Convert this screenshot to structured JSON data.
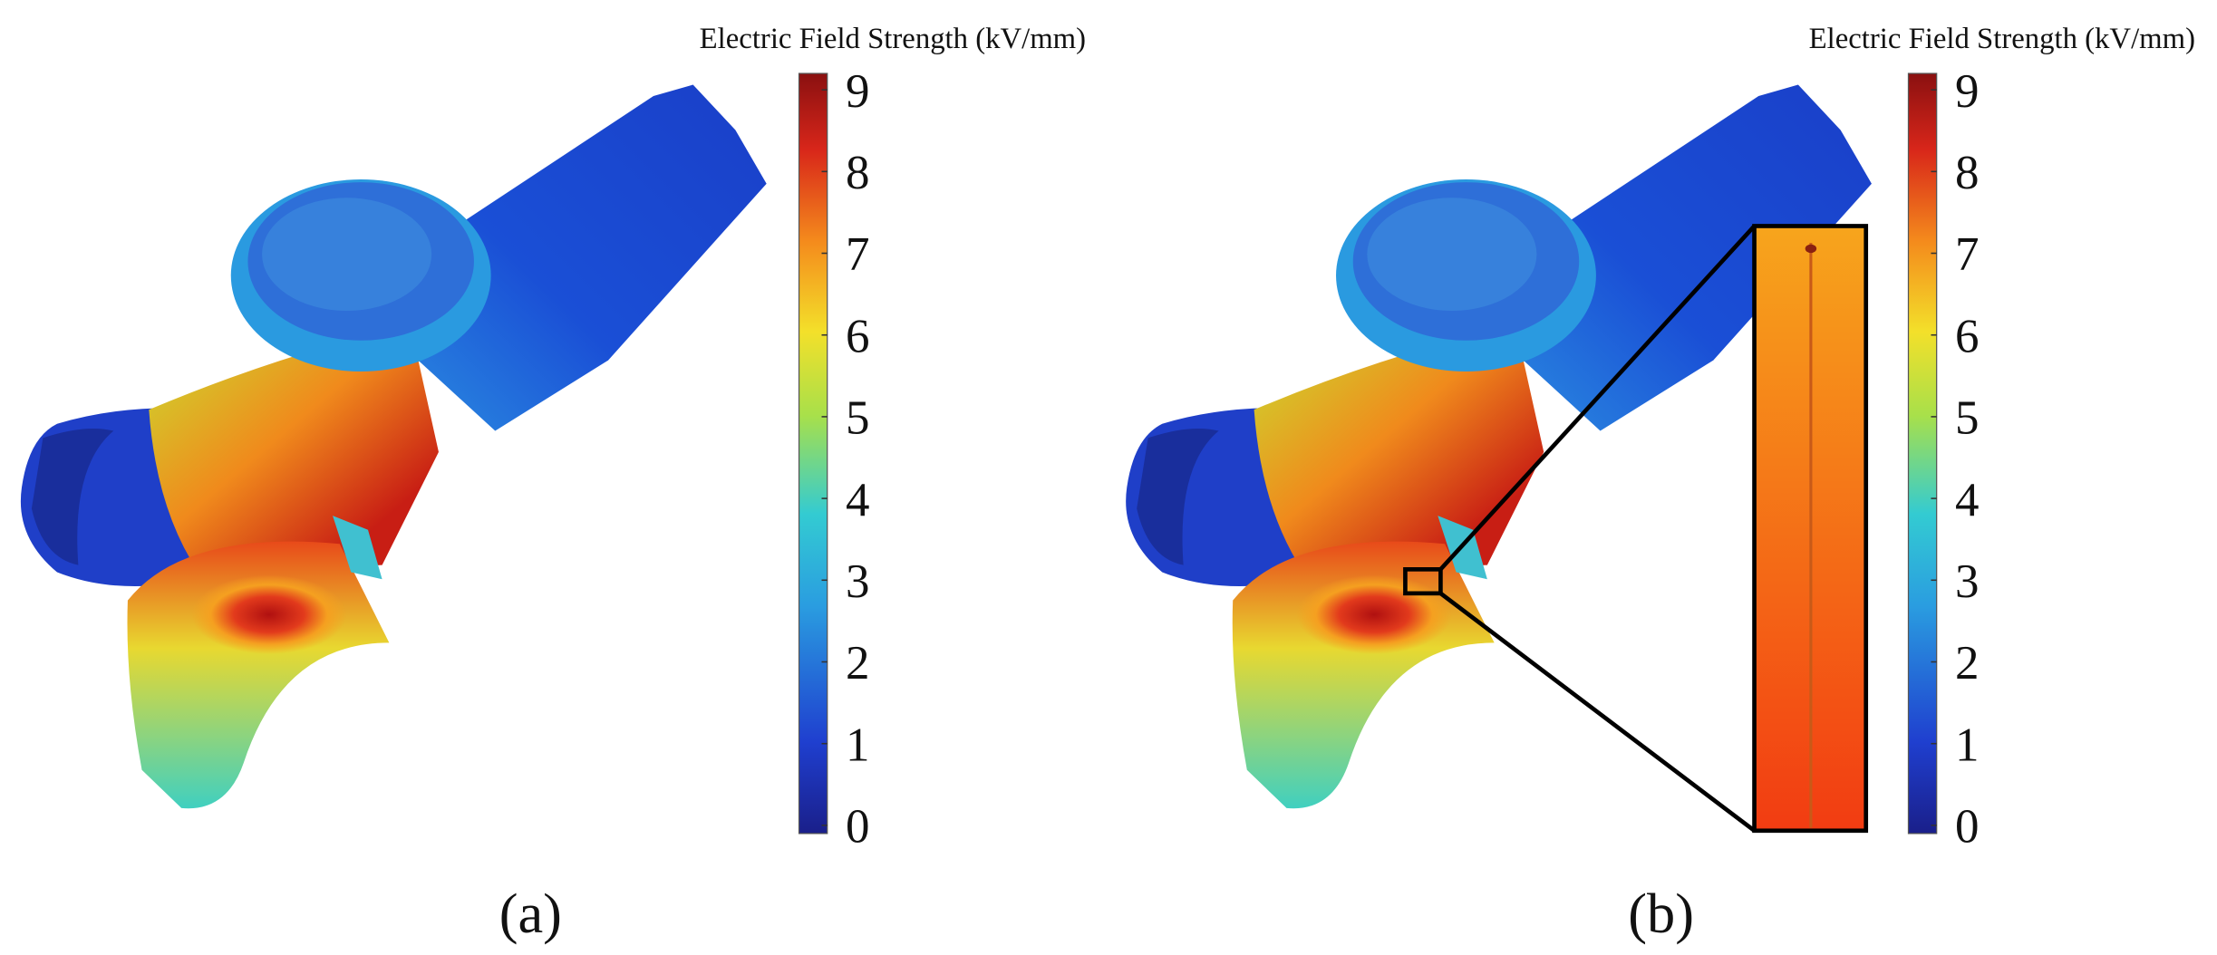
{
  "panels": [
    {
      "label": "(a)",
      "colorbar": {
        "title": "Electric Field Strength (kV/mm)",
        "lim": [
          -0.1,
          9.2
        ],
        "ticks": [
          0,
          1,
          2,
          3,
          4,
          5,
          6,
          7,
          8,
          9
        ]
      }
    },
    {
      "label": "(b)",
      "colorbar": {
        "title": "Electric Field Strength (kV/mm)",
        "lim": [
          -0.1,
          9.2
        ],
        "ticks": [
          0,
          1,
          2,
          3,
          4,
          5,
          6,
          7,
          8,
          9
        ]
      }
    }
  ]
}
